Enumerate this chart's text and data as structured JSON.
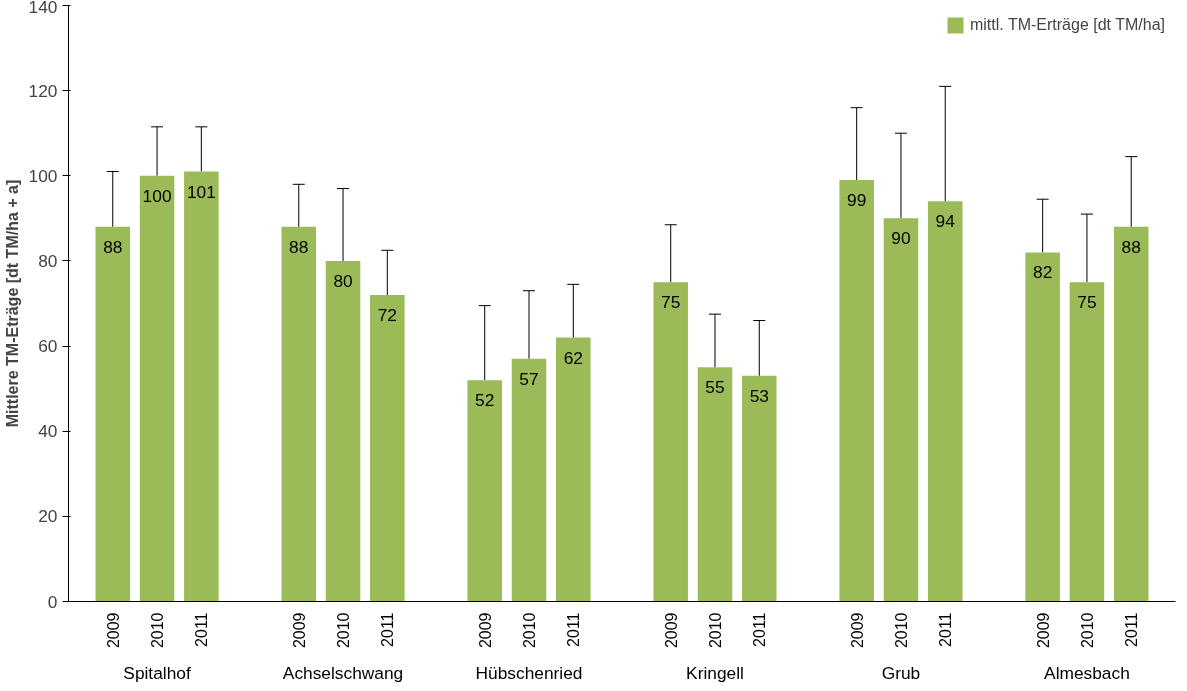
{
  "chart_data": {
    "type": "bar",
    "ylabel": "Mittlere TM-Eträge [dt TM/ha + a]",
    "categories": [
      "2009",
      "2010",
      "2011",
      "2009",
      "2010",
      "2011",
      "2009",
      "2010",
      "2011",
      "2009",
      "2010",
      "2011",
      "2009",
      "2010",
      "2011",
      "2009",
      "2010",
      "2011"
    ],
    "annotations": [
      "Spitalhof",
      "Achselschwang",
      "Hübschenried",
      "Kringell",
      "Grub",
      "Almesbach"
    ],
    "series": [
      {
        "name": "mittl. TM-Erträge [dt TM/ha]",
        "color": "#9bbb59",
        "values": [
          88,
          100,
          101,
          88,
          80,
          72,
          52,
          57,
          62,
          75,
          55,
          53,
          99,
          90,
          94,
          82,
          75,
          88
        ],
        "errors": [
          [
            88,
            101
          ],
          [
            100,
            111.5
          ],
          [
            101,
            111.5
          ],
          [
            88,
            98
          ],
          [
            80,
            97
          ],
          [
            72,
            82.5
          ],
          [
            52,
            69.5
          ],
          [
            57,
            73
          ],
          [
            62,
            74.5
          ],
          [
            75,
            88.5
          ],
          [
            55,
            67.5
          ],
          [
            53,
            66
          ],
          [
            99,
            116
          ],
          [
            90,
            110
          ],
          [
            94,
            121
          ],
          [
            82,
            94.5
          ],
          [
            75,
            91
          ],
          [
            88,
            104.5
          ]
        ]
      }
    ],
    "data_labels": true,
    "ylim": [
      0,
      140
    ],
    "yticks": [
      0,
      20,
      40,
      60,
      80,
      100,
      120,
      140
    ],
    "grid": false,
    "legend": "top right"
  }
}
